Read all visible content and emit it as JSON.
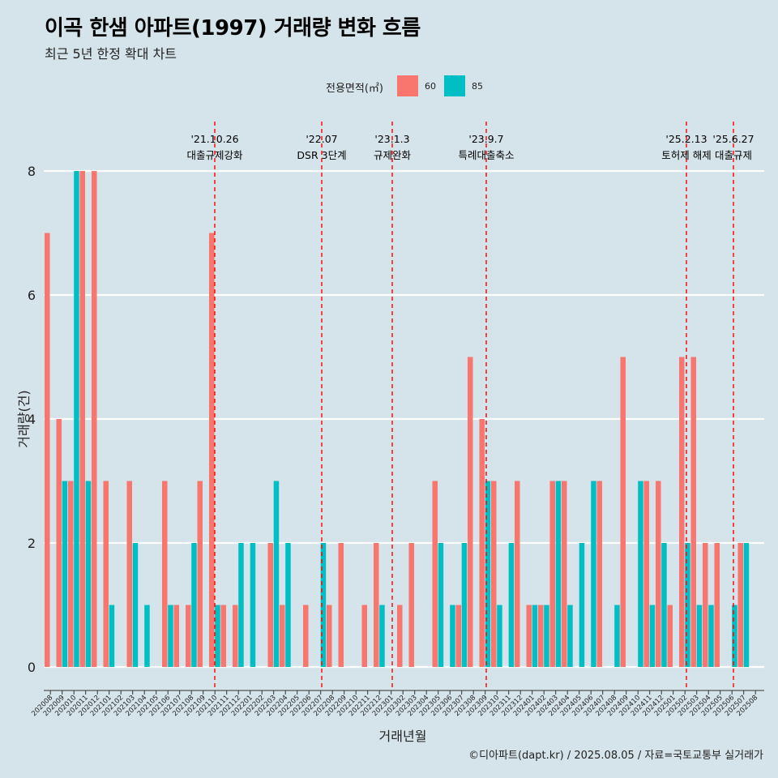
{
  "title": "이곡 한샘 아파트(1997) 거래량 변화 흐름",
  "subtitle": "최근 5년 한정 확대 차트",
  "legend": {
    "title": "전용면적(㎡)",
    "items": [
      {
        "label": "60",
        "color": "#f8766d"
      },
      {
        "label": "85",
        "color": "#00bfc4"
      }
    ]
  },
  "caption": "©디아파트(dapt.kr) / 2025.08.05 / 자료=국토교통부 실거래가",
  "chart_data": {
    "type": "bar",
    "xlabel": "거래년월",
    "ylabel": "거래량(건)",
    "ylim": [
      0,
      8.5
    ],
    "yticks": [
      0,
      2,
      4,
      6,
      8
    ],
    "categories": [
      "202008",
      "202009",
      "202010",
      "202011",
      "202012",
      "202101",
      "202102",
      "202103",
      "202104",
      "202105",
      "202106",
      "202107",
      "202108",
      "202109",
      "202110",
      "202111",
      "202112",
      "202201",
      "202202",
      "202203",
      "202204",
      "202205",
      "202206",
      "202207",
      "202208",
      "202209",
      "202210",
      "202211",
      "202212",
      "202301",
      "202302",
      "202303",
      "202304",
      "202305",
      "202306",
      "202307",
      "202308",
      "202309",
      "202310",
      "202311",
      "202312",
      "202401",
      "202402",
      "202403",
      "202404",
      "202405",
      "202406",
      "202407",
      "202408",
      "202409",
      "202410",
      "202411",
      "202412",
      "202501",
      "202502",
      "202503",
      "202504",
      "202505",
      "202506",
      "202507",
      "202508"
    ],
    "series": [
      {
        "name": "60",
        "color": "#f8766d",
        "values": [
          7,
          4,
          3,
          8,
          8,
          3,
          0,
          3,
          0,
          0,
          3,
          1,
          1,
          3,
          7,
          1,
          1,
          0,
          0,
          2,
          1,
          0,
          1,
          0,
          1,
          2,
          0,
          1,
          2,
          0,
          1,
          2,
          0,
          3,
          0,
          1,
          5,
          4,
          3,
          0,
          3,
          1,
          1,
          3,
          3,
          0,
          0,
          3,
          0,
          5,
          0,
          3,
          3,
          1,
          5,
          5,
          2,
          2,
          0,
          2,
          0
        ]
      },
      {
        "name": "85",
        "color": "#00bfc4",
        "values": [
          0,
          3,
          8,
          3,
          0,
          1,
          0,
          2,
          1,
          0,
          1,
          0,
          2,
          0,
          1,
          0,
          2,
          2,
          0,
          3,
          2,
          0,
          0,
          2,
          0,
          0,
          0,
          0,
          1,
          0,
          0,
          0,
          0,
          2,
          1,
          2,
          0,
          3,
          1,
          2,
          0,
          1,
          1,
          3,
          1,
          2,
          3,
          0,
          1,
          0,
          3,
          1,
          2,
          0,
          2,
          1,
          1,
          0,
          1,
          2,
          0
        ]
      }
    ],
    "annotations": [
      {
        "date": "'21.10.26",
        "label": "대출규제강화",
        "line_color": "#ff0000"
      },
      {
        "date": "'22.07",
        "label": "DSR 3단계",
        "line_color": "#ff0000"
      },
      {
        "date": "'23.1.3",
        "label": "규제완화",
        "line_color": "#ff0000"
      },
      {
        "date": "'23.9.7",
        "label": "특례대출축소",
        "line_color": "#ff0000"
      },
      {
        "date": "'25.2.13",
        "label": "토허제 해제",
        "line_color": "#ff0000"
      },
      {
        "date": "'25.6.27",
        "label": "대출규제",
        "line_color": "#ff0000"
      }
    ]
  }
}
